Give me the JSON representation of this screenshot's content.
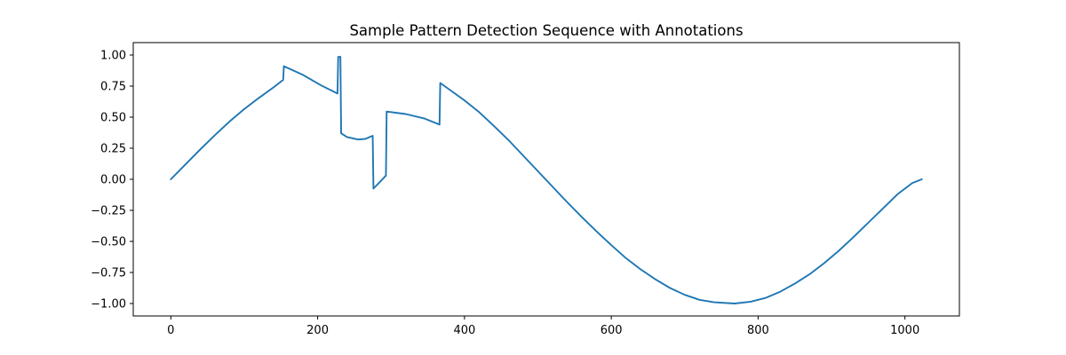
{
  "chart_data": {
    "type": "line",
    "title": "Sample Pattern Detection Sequence with Annotations",
    "xlabel": "",
    "ylabel": "",
    "xlim": [
      -51.2,
      1074.2
    ],
    "ylim": [
      -1.1,
      1.1
    ],
    "grid": false,
    "legend": "none",
    "x_ticks": [
      0,
      200,
      400,
      600,
      800,
      1000
    ],
    "x_tick_labels": [
      "0",
      "200",
      "400",
      "600",
      "800",
      "1000"
    ],
    "y_ticks": [
      1.0,
      0.75,
      0.5,
      0.25,
      0.0,
      -0.25,
      -0.5,
      -0.75,
      -1.0
    ],
    "y_tick_labels": [
      "1.00",
      "0.75",
      "0.50",
      "0.25",
      "0.00",
      "−0.25",
      "−0.50",
      "−0.75",
      "−1.00"
    ],
    "series": [
      {
        "color": "#1f77b4",
        "x": [
          0,
          20,
          40,
          60,
          80,
          100,
          120,
          140,
          153,
          154,
          180,
          205,
          227,
          228,
          231,
          232,
          240,
          255,
          265,
          275,
          276,
          285,
          293,
          294,
          320,
          345,
          366,
          367,
          400,
          420,
          440,
          460,
          480,
          500,
          520,
          540,
          560,
          580,
          600,
          620,
          640,
          660,
          680,
          700,
          720,
          740,
          768,
          790,
          810,
          830,
          850,
          870,
          890,
          910,
          930,
          950,
          970,
          990,
          1010,
          1023
        ],
        "y": [
          0.0,
          0.12,
          0.24,
          0.355,
          0.465,
          0.565,
          0.655,
          0.74,
          0.8,
          0.91,
          0.84,
          0.755,
          0.69,
          0.985,
          0.985,
          0.37,
          0.34,
          0.32,
          0.325,
          0.35,
          -0.075,
          -0.02,
          0.03,
          0.545,
          0.525,
          0.49,
          0.44,
          0.775,
          0.635,
          0.54,
          0.43,
          0.315,
          0.19,
          0.065,
          -0.06,
          -0.185,
          -0.305,
          -0.42,
          -0.53,
          -0.635,
          -0.725,
          -0.805,
          -0.875,
          -0.93,
          -0.97,
          -0.99,
          -1.0,
          -0.985,
          -0.955,
          -0.905,
          -0.84,
          -0.765,
          -0.675,
          -0.575,
          -0.465,
          -0.35,
          -0.235,
          -0.12,
          -0.03,
          0.0
        ]
      }
    ]
  }
}
